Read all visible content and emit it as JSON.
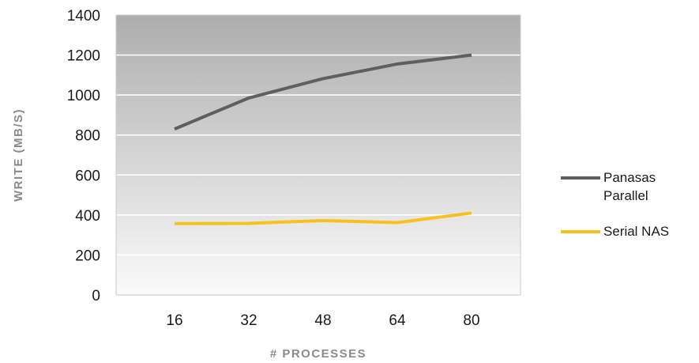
{
  "chart_data": {
    "type": "line",
    "title": "",
    "xlabel": "# PROCESSES",
    "ylabel": "WRITE (MB/S)",
    "categories": [
      "16",
      "32",
      "48",
      "64",
      "80"
    ],
    "ylim": [
      0,
      1400
    ],
    "yticks": [
      0,
      200,
      400,
      600,
      800,
      1000,
      1200,
      1400
    ],
    "grid": true,
    "legend_position": "right",
    "series": [
      {
        "name_lines": [
          "Panasas",
          "Parallel"
        ],
        "color": "#5f5f5f",
        "values": [
          830,
          985,
          1082,
          1155,
          1200
        ]
      },
      {
        "name_lines": [
          "Serial NAS"
        ],
        "color": "#f7c21e",
        "values": [
          357,
          358,
          372,
          362,
          410
        ]
      }
    ]
  }
}
